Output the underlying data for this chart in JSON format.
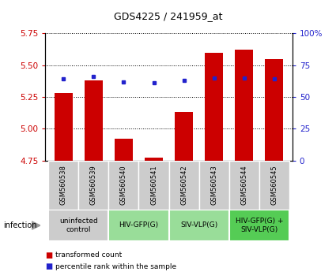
{
  "title": "GDS4225 / 241959_at",
  "samples": [
    "GSM560538",
    "GSM560539",
    "GSM560540",
    "GSM560541",
    "GSM560542",
    "GSM560543",
    "GSM560544",
    "GSM560545"
  ],
  "red_values": [
    5.28,
    5.38,
    4.92,
    4.77,
    5.13,
    5.6,
    5.62,
    5.55
  ],
  "blue_values": [
    64,
    66,
    62,
    61,
    63,
    65,
    65,
    64.5
  ],
  "ylim": [
    4.75,
    5.75
  ],
  "y2lim": [
    0,
    100
  ],
  "yticks": [
    4.75,
    5.0,
    5.25,
    5.5,
    5.75
  ],
  "y2ticks": [
    0,
    25,
    50,
    75,
    100
  ],
  "bar_color": "#cc0000",
  "dot_color": "#2222cc",
  "bar_width": 0.6,
  "groups": [
    {
      "label": "uninfected\ncontrol",
      "start": 0,
      "end": 2,
      "color": "#cccccc"
    },
    {
      "label": "HIV-GFP(G)",
      "start": 2,
      "end": 4,
      "color": "#99dd99"
    },
    {
      "label": "SIV-VLP(G)",
      "start": 4,
      "end": 6,
      "color": "#99dd99"
    },
    {
      "label": "HIV-GFP(G) +\nSIV-VLP(G)",
      "start": 6,
      "end": 8,
      "color": "#55cc55"
    }
  ],
  "infection_label": "infection",
  "legend_red": "transformed count",
  "legend_blue": "percentile rank within the sample",
  "sample_bg_color": "#cccccc",
  "plot_bg_color": "#ffffff"
}
